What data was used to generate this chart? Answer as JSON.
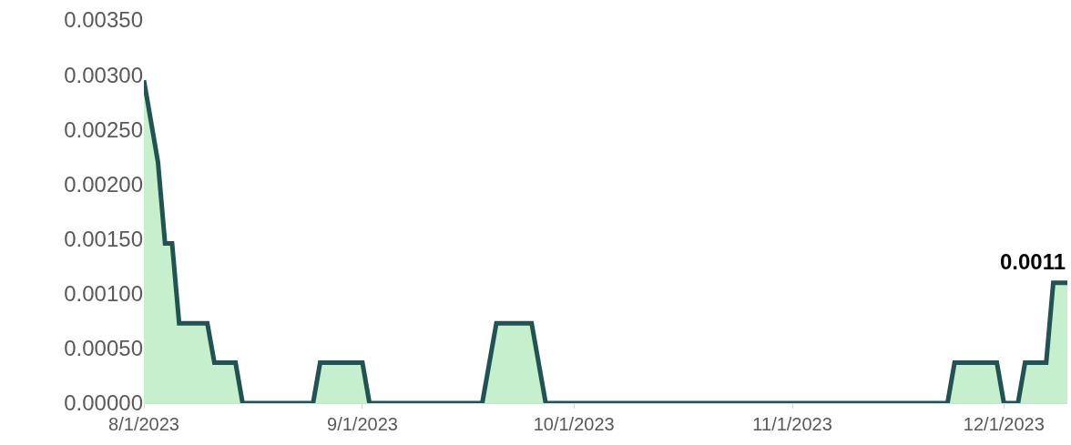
{
  "chart_data": {
    "type": "area",
    "x": [
      "2023-08-01",
      "2023-08-03",
      "2023-08-04",
      "2023-08-05",
      "2023-08-06",
      "2023-08-10",
      "2023-08-11",
      "2023-08-14",
      "2023-08-15",
      "2023-08-25",
      "2023-08-26",
      "2023-09-01",
      "2023-09-02",
      "2023-09-18",
      "2023-09-20",
      "2023-09-25",
      "2023-09-27",
      "2023-11-23",
      "2023-11-24",
      "2023-11-30",
      "2023-12-01",
      "2023-12-03",
      "2023-12-04",
      "2023-12-07",
      "2023-12-08",
      "2023-12-10"
    ],
    "series": [
      {
        "color": "#215352",
        "values": [
          0.00295,
          0.0022,
          0.00146,
          0.00146,
          0.00073,
          0.00073,
          0.00037,
          0.00037,
          0,
          0,
          0.00037,
          0.00037,
          0,
          0,
          0.00073,
          0.00073,
          0,
          0,
          0.00037,
          0.00037,
          0,
          0,
          0.00037,
          0.00037,
          0.0011,
          0.0011
        ]
      }
    ],
    "xlim": [
      "2023-08-01",
      "2023-12-10"
    ],
    "xticks": [
      {
        "value": "2023-08-01",
        "label": "8/1/2023"
      },
      {
        "value": "2023-09-01",
        "label": "9/1/2023"
      },
      {
        "value": "2023-10-01",
        "label": "10/1/2023"
      },
      {
        "value": "2023-11-01",
        "label": "11/1/2023"
      },
      {
        "value": "2023-12-01",
        "label": "12/1/2023"
      }
    ],
    "ylim": [
      0,
      0.0035
    ],
    "yticks": [
      {
        "value": 0,
        "label": "0.00000"
      },
      {
        "value": 0.0005,
        "label": "0.00050"
      },
      {
        "value": 0.001,
        "label": "0.00100"
      },
      {
        "value": 0.0015,
        "label": "0.00150"
      },
      {
        "value": 0.002,
        "label": "0.00200"
      },
      {
        "value": 0.0025,
        "label": "0.00250"
      },
      {
        "value": 0.003,
        "label": "0.00300"
      },
      {
        "value": 0.0035,
        "label": "0.00350"
      }
    ],
    "annotations": [
      {
        "text": "0.0011",
        "x": "2023-12-10",
        "y": 0.0011
      }
    ],
    "marker": "none",
    "line_style": "solid"
  }
}
